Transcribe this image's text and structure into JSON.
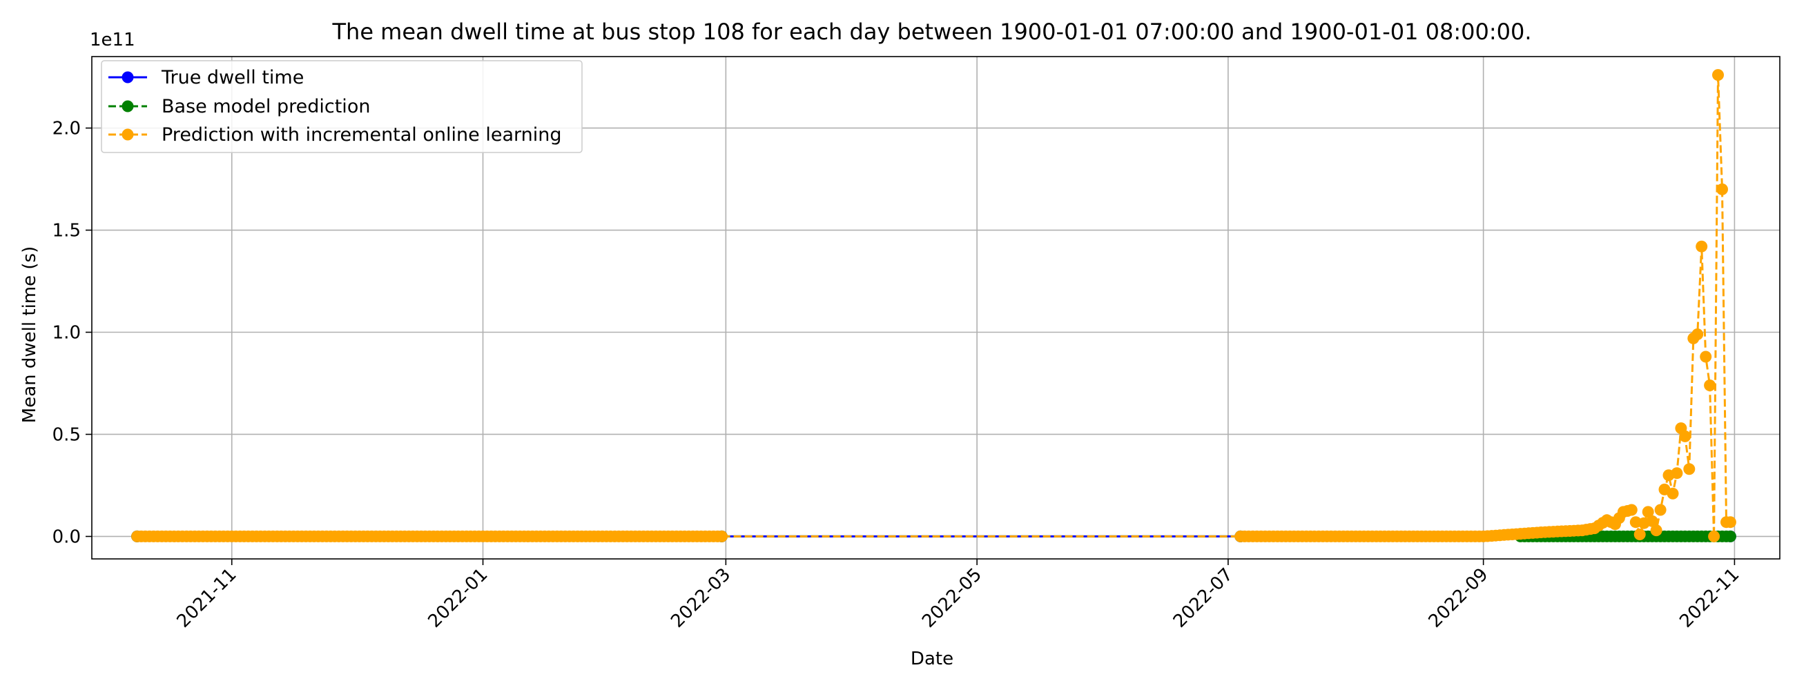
{
  "chart_data": {
    "type": "line",
    "title": "The mean dwell time at bus stop 108 for each day between 1900-01-01 07:00:00 and 1900-01-01 08:00:00.",
    "xlabel": "Date",
    "ylabel": "Mean dwell time (s)",
    "y_offset_text": "1e11",
    "y_unit_scale": 100000000000,
    "ylim": [
      -0.11,
      2.35
    ],
    "xlim": [
      "2021-09-28",
      "2022-11-12"
    ],
    "x_ticks": [
      "2021-11",
      "2022-01",
      "2022-03",
      "2022-05",
      "2022-07",
      "2022-09",
      "2022-11"
    ],
    "y_ticks": [
      0.0,
      0.5,
      1.0,
      1.5,
      2.0
    ],
    "grid": true,
    "legend_position": "upper-left",
    "series": [
      {
        "name": "True dwell time",
        "color": "#0000ff",
        "line_style": "solid",
        "marker": "circle",
        "values_note_free": true,
        "x": [
          "2021-10-09",
          "2022-02-28",
          "2022-07-04",
          "2022-10-31"
        ],
        "y": [
          0,
          0,
          0,
          0
        ]
      },
      {
        "name": "Base model prediction",
        "color": "#008000",
        "line_style": "dashed",
        "marker": "circle",
        "x": [
          "2021-10-09",
          "2022-02-28",
          "2022-07-04",
          "2022-09-10",
          "2022-09-20",
          "2022-10-01",
          "2022-10-10",
          "2022-10-20",
          "2022-10-31"
        ],
        "y": [
          0,
          0,
          0,
          0,
          0,
          0,
          0,
          0,
          0
        ]
      },
      {
        "name": "Prediction with incremental online learning",
        "color": "#ffa500",
        "line_style": "dashed",
        "marker": "circle",
        "x": [
          "2021-10-09",
          "2021-11-01",
          "2021-12-01",
          "2022-01-01",
          "2022-02-01",
          "2022-02-28",
          "2022-07-04",
          "2022-08-01",
          "2022-09-01",
          "2022-09-15",
          "2022-09-25",
          "2022-09-28",
          "2022-10-01",
          "2022-10-03",
          "2022-10-05",
          "2022-10-07",
          "2022-10-09",
          "2022-10-11",
          "2022-10-13",
          "2022-10-15",
          "2022-10-16",
          "2022-10-17",
          "2022-10-18",
          "2022-10-19",
          "2022-10-20",
          "2022-10-21",
          "2022-10-22",
          "2022-10-23",
          "2022-10-24",
          "2022-10-25",
          "2022-10-26",
          "2022-10-27",
          "2022-10-28",
          "2022-10-29",
          "2022-10-30",
          "2022-10-31"
        ],
        "y": [
          0,
          0,
          0,
          0,
          0,
          0,
          0,
          0,
          0,
          0.02,
          0.03,
          0.04,
          0.08,
          0.06,
          0.12,
          0.13,
          0.01,
          0.12,
          0.03,
          0.23,
          0.3,
          0.21,
          0.31,
          0.53,
          0.49,
          0.33,
          0.97,
          0.99,
          1.42,
          0.88,
          0.74,
          0.0,
          2.26,
          1.7,
          0.07,
          0.07
        ]
      }
    ]
  }
}
